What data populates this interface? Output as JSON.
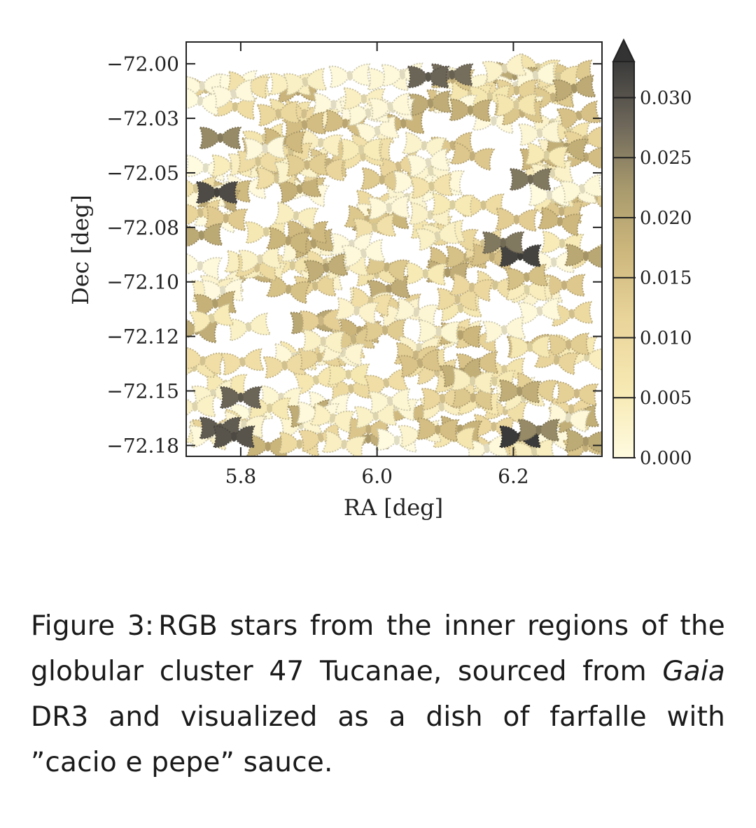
{
  "chart_data": {
    "type": "scatter",
    "marker": "farfalle (bow-tie)",
    "xlabel": "RA [deg]",
    "ylabel": "Dec [deg]",
    "xlim": [
      5.72,
      6.33
    ],
    "ylim": [
      -72.18,
      -71.99
    ],
    "x_ticks": [
      5.8,
      6.0,
      6.2
    ],
    "x_tick_labels": [
      "5.8",
      "6.0",
      "6.2"
    ],
    "y_ticks": [
      -72.0,
      -72.025,
      -72.05,
      -72.075,
      -72.1,
      -72.125,
      -72.15,
      -72.175
    ],
    "y_tick_labels": [
      "−72.00",
      "−72.03",
      "−72.05",
      "−72.08",
      "−72.10",
      "−72.12",
      "−72.15",
      "−72.18"
    ],
    "colorbar": {
      "range": [
        0.0,
        0.033
      ],
      "ticks": [
        0.0,
        0.005,
        0.01,
        0.015,
        0.02,
        0.025,
        0.03
      ],
      "tick_labels": [
        "0.000",
        "0.005",
        "0.010",
        "0.015",
        "0.020",
        "0.025",
        "0.030"
      ],
      "extend": "max",
      "colors": [
        "#fffbe0",
        "#f7e9b3",
        "#e9d49a",
        "#cdb77c",
        "#a89a6d",
        "#6e675a",
        "#3a3a3a"
      ]
    },
    "grid": false,
    "legend": "none",
    "highlight_points": [
      {
        "ra": 5.765,
        "dec": -72.059,
        "value": 0.031
      },
      {
        "ra": 6.21,
        "dec": -72.088,
        "value": 0.032
      },
      {
        "ra": 6.225,
        "dec": -72.053,
        "value": 0.026
      },
      {
        "ra": 5.77,
        "dec": -72.034,
        "value": 0.024
      },
      {
        "ra": 5.77,
        "dec": -72.167,
        "value": 0.029
      },
      {
        "ra": 5.79,
        "dec": -72.171,
        "value": 0.03
      },
      {
        "ra": 6.21,
        "dec": -72.171,
        "value": 0.033
      },
      {
        "ra": 6.237,
        "dec": -72.168,
        "value": 0.024
      },
      {
        "ra": 5.8,
        "dec": -72.153,
        "value": 0.028
      },
      {
        "ra": 6.11,
        "dec": -72.005,
        "value": 0.027
      },
      {
        "ra": 6.075,
        "dec": -72.006,
        "value": 0.028
      },
      {
        "ra": 6.185,
        "dec": -72.082,
        "value": 0.026
      }
    ],
    "field_stars": {
      "count": 300,
      "value_range": [
        0.0,
        0.02
      ],
      "ra_range": [
        5.73,
        6.32
      ],
      "dec_range": [
        -72.178,
        -72.0
      ]
    }
  },
  "caption": {
    "label": "Figure 3:",
    "text_before_italic": "RGB stars from the inner regions of the globular cluster 47 Tucanae, sourced from ",
    "italic": "Gaia",
    "text_after_italic": " DR3 and visualized as a dish of farfalle with ”cacio e pepe” sauce."
  }
}
